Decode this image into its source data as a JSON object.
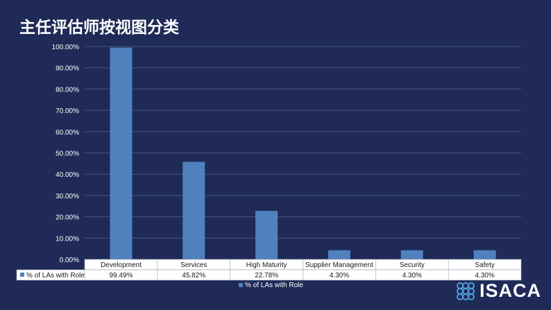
{
  "title": "主任评估师按视图分类",
  "brand": {
    "logo_text": "ISACA",
    "logo_icon": "isaca-logo-icon"
  },
  "colors": {
    "background": "#1f2a57",
    "bar": "#4f81bd",
    "grid": "#4a5584",
    "text": "#ffffff",
    "table_text": "#1a1a1a",
    "table_bg": "#ffffff"
  },
  "chart_data": {
    "type": "bar",
    "categories": [
      "Development",
      "Services",
      "High Maturity",
      "Supplier Management",
      "Security",
      "Safety"
    ],
    "series": [
      {
        "name": "% of LAs with Role",
        "values": [
          99.49,
          45.82,
          22.78,
          4.3,
          4.3,
          4.3
        ]
      }
    ],
    "value_labels": [
      "99.49%",
      "45.82%",
      "22.78%",
      "4.30%",
      "4.30%",
      "4.30%"
    ],
    "y_ticks": [
      "0.00%",
      "10.00%",
      "20.00%",
      "30.00%",
      "40.00%",
      "50.00%",
      "60.00%",
      "70.00%",
      "80.00%",
      "90.00%",
      "100.00%"
    ],
    "ylim": [
      0,
      100
    ],
    "grid": true,
    "legend": {
      "position": "bottom",
      "label": "% of LAs with Role"
    },
    "data_table": true
  }
}
